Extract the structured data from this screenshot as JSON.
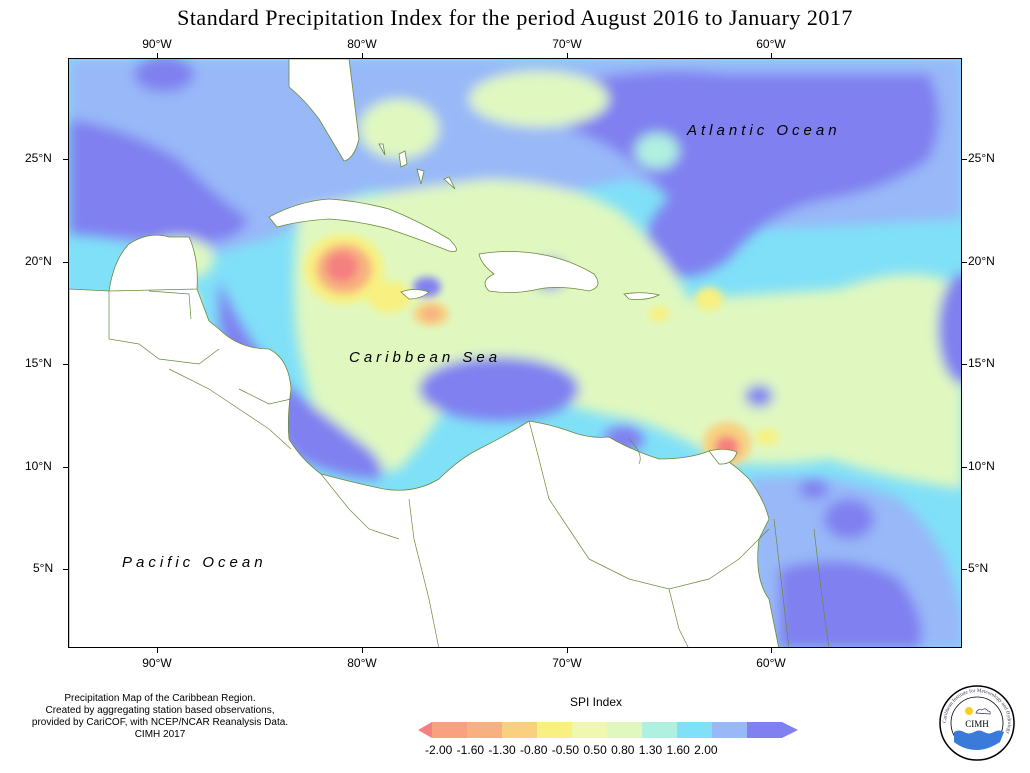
{
  "title": "Standard Precipitation Index for the period August 2016 to January 2017",
  "lon_ticks": [
    "90°W",
    "80°W",
    "70°W",
    "60°W"
  ],
  "lat_ticks": [
    "25°N",
    "20°N",
    "15°N",
    "10°N",
    "5°N"
  ],
  "ocean_labels": {
    "atlantic": "Atlantic Ocean",
    "caribbean": "Caribbean Sea",
    "pacific": "Pacific Ocean"
  },
  "credit": {
    "line1": "Precipitation Map of the Caribbean Region.",
    "line2": "Created by aggregating station based observations,",
    "line3": "provided by CariCOF, with NCEP/NCAR Reanalysis Data.",
    "line4": "CIMH 2017"
  },
  "legend": {
    "title": "SPI Index",
    "labels": "-2.00 -1.60 -1.30 -0.80 -0.50 0.50 0.80 1.30 1.60 2.00",
    "classes": [
      {
        "color": "#f48080"
      },
      {
        "color": "#f8b080"
      },
      {
        "color": "#f8d080"
      },
      {
        "color": "#f8f080"
      },
      {
        "color": "#f0f8b0"
      },
      {
        "color": "#e0f8c0"
      },
      {
        "color": "#b0f0e0"
      },
      {
        "color": "#80e0f8"
      },
      {
        "color": "#98b8f8"
      },
      {
        "color": "#8080f0"
      }
    ]
  },
  "logo": {
    "name": "CIMH",
    "ring_text": "Caribbean Institute for Meteorology and Hydrology"
  },
  "colors": {
    "very_wet": "#8080f0",
    "wet": "#98b8f8",
    "moderately_wet": "#80e0f8",
    "slightly_wet": "#b0f0e0",
    "near_normal": "#e0f8c0",
    "slightly_dry": "#f8f080",
    "dry": "#f8b080",
    "very_dry": "#f48080",
    "land": "#ffffff",
    "border": "#6a8a3a"
  }
}
